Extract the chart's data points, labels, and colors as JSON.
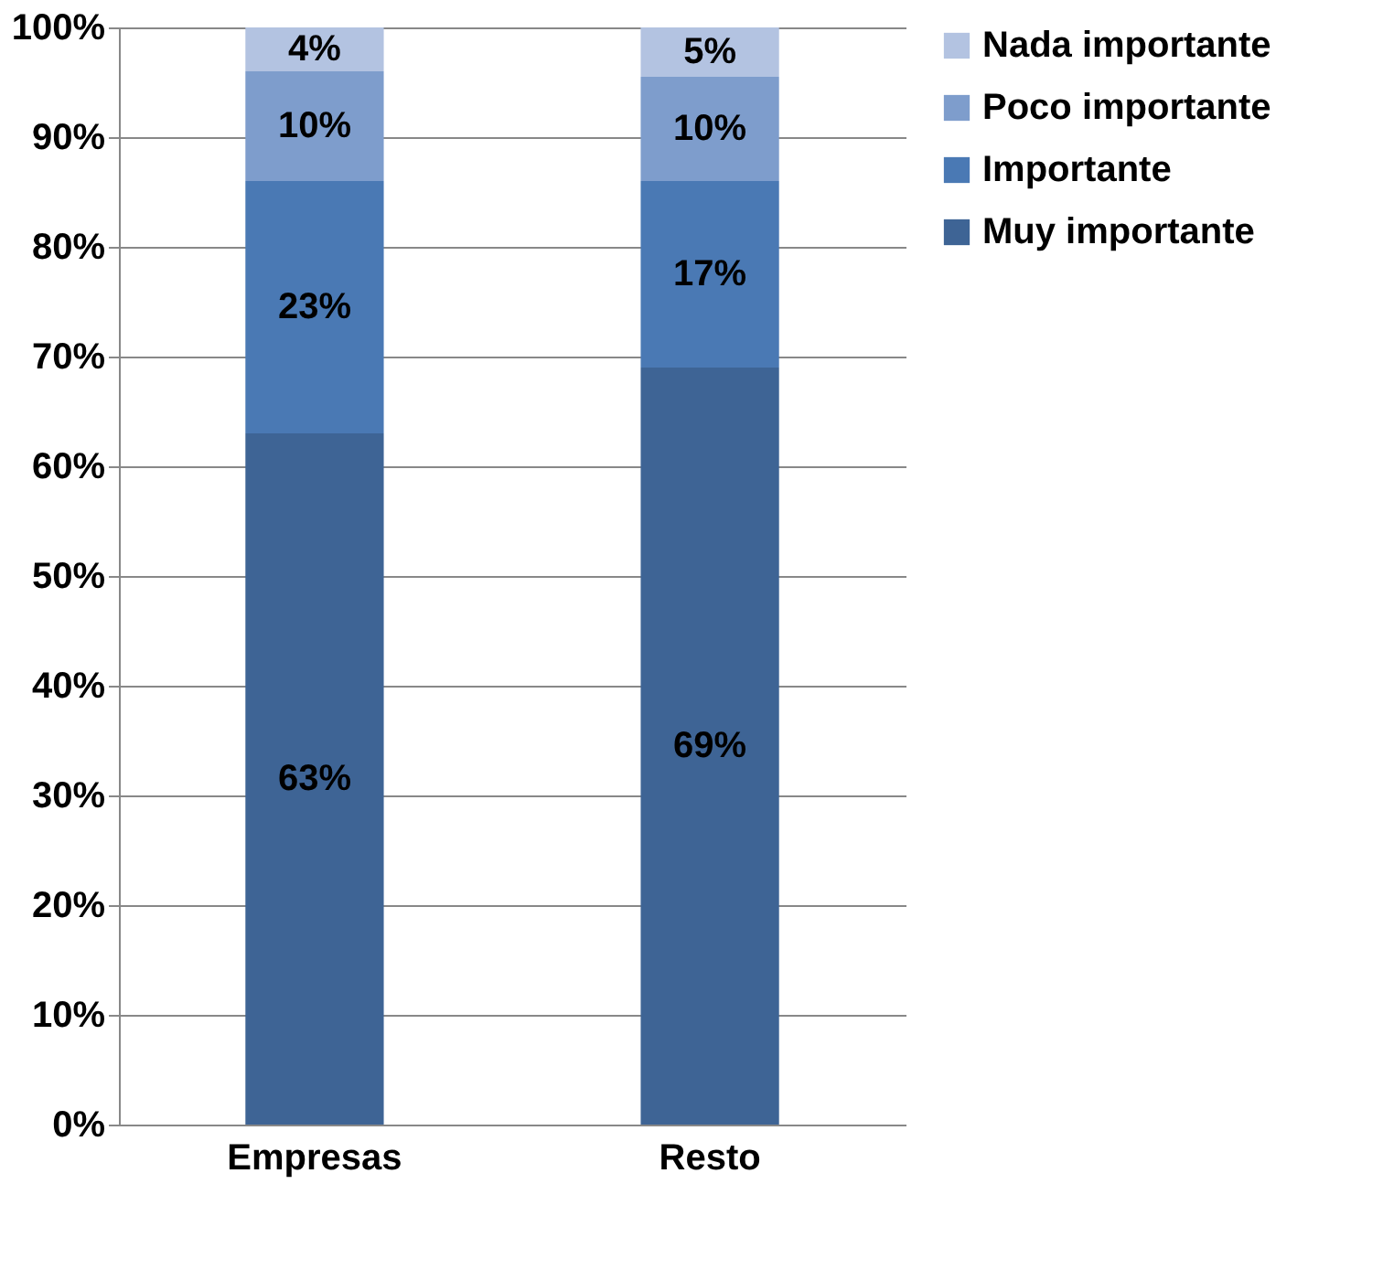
{
  "chart_data": {
    "type": "bar",
    "stacked": true,
    "categories": [
      "Empresas",
      "Resto"
    ],
    "series": [
      {
        "name": "Muy importante",
        "color": "#3e6495",
        "values": [
          63,
          69
        ],
        "value_labels": [
          "63%",
          "69%"
        ]
      },
      {
        "name": "Importante",
        "color": "#4a79b4",
        "values": [
          23,
          17
        ],
        "value_labels": [
          "23%",
          "17%"
        ]
      },
      {
        "name": "Poco importante",
        "color": "#7e9dcc",
        "values": [
          10,
          9.5
        ],
        "value_labels": [
          "10%",
          "10%"
        ]
      },
      {
        "name": "Nada importante",
        "color": "#b3c3e1",
        "values": [
          4,
          4.5
        ],
        "value_labels": [
          "4%",
          "5%"
        ]
      }
    ],
    "ylim": [
      0,
      100
    ],
    "yticks": [
      {
        "value": 0,
        "label": "0%"
      },
      {
        "value": 10,
        "label": "10%"
      },
      {
        "value": 20,
        "label": "20%"
      },
      {
        "value": 30,
        "label": "30%"
      },
      {
        "value": 40,
        "label": "40%"
      },
      {
        "value": 50,
        "label": "50%"
      },
      {
        "value": 60,
        "label": "60%"
      },
      {
        "value": 70,
        "label": "70%"
      },
      {
        "value": 80,
        "label": "80%"
      },
      {
        "value": 90,
        "label": "90%"
      },
      {
        "value": 100,
        "label": "100%"
      }
    ],
    "grid": "y",
    "legend": "right"
  }
}
